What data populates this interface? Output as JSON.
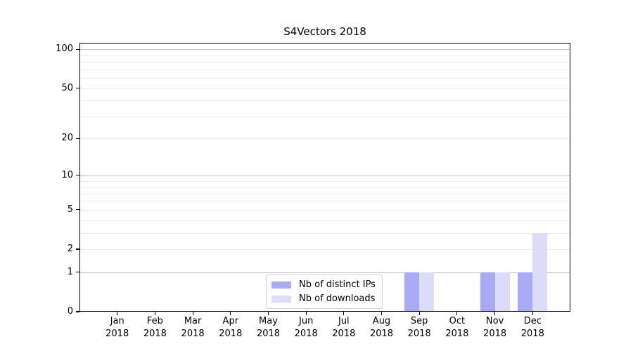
{
  "chart_data": {
    "type": "bar",
    "title": "S4Vectors 2018",
    "categories": [
      "Jan 2018",
      "Feb 2018",
      "Mar 2018",
      "Apr 2018",
      "May 2018",
      "Jun 2018",
      "Jul 2018",
      "Aug 2018",
      "Sep 2018",
      "Oct 2018",
      "Nov 2018",
      "Dec 2018"
    ],
    "series": [
      {
        "name": "Nb of distinct IPs",
        "color": "#a9a9f5",
        "values": [
          0,
          0,
          0,
          0,
          0,
          0,
          0,
          0,
          1,
          0,
          1,
          1
        ]
      },
      {
        "name": "Nb of downloads",
        "color": "#dcdcf8",
        "values": [
          0,
          0,
          0,
          0,
          0,
          0,
          0,
          0,
          1,
          0,
          1,
          3
        ]
      }
    ],
    "xlabel": "",
    "ylabel": "",
    "yscale": "log1p",
    "ylim": [
      0,
      112
    ],
    "yticks": [
      0,
      1,
      2,
      5,
      10,
      20,
      50,
      100
    ],
    "major_gridlines": [
      1,
      10,
      100
    ],
    "minor_gridlines": [
      2,
      3,
      4,
      5,
      6,
      7,
      8,
      9,
      20,
      30,
      40,
      50,
      60,
      70,
      80,
      90
    ],
    "grid": true,
    "legend_position": "lower center",
    "colors": {
      "frame": "#000000",
      "text": "#000000",
      "major_grid": "#c6c6c6",
      "minor_grid": "#ececec",
      "legend_border": "#d0d0d0"
    }
  }
}
